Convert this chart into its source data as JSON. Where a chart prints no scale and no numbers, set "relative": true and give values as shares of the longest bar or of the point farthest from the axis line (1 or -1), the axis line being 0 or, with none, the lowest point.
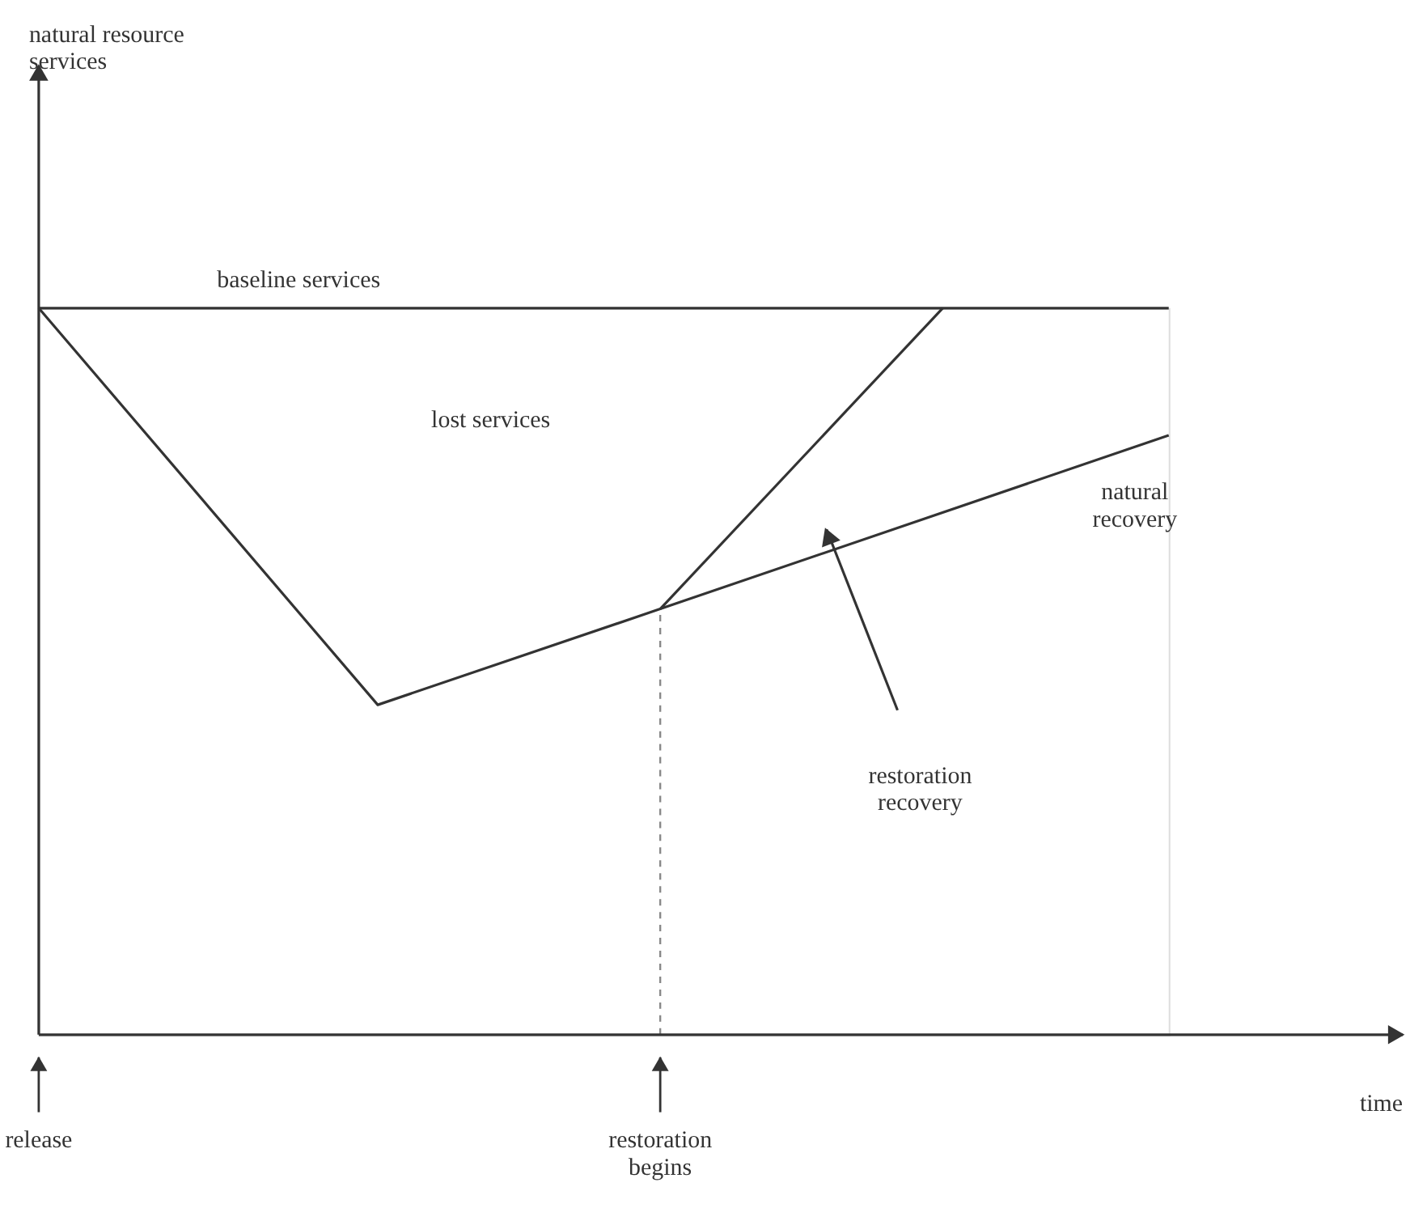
{
  "chart_data": {
    "type": "line",
    "relative": true,
    "tick_labels": false,
    "grid": false,
    "marker": "none",
    "categories": [
      null,
      null,
      null,
      null,
      null,
      null,
      null,
      null,
      null,
      null,
      null,
      null,
      null,
      null,
      null,
      null,
      null,
      null,
      null,
      null,
      null
    ],
    "series": [
      {
        "values": [
          1,
          null,
          null,
          null,
          null,
          null,
          null,
          null,
          null,
          null,
          null,
          null,
          null,
          null,
          null,
          null,
          null,
          null,
          null,
          null,
          1
        ],
        "color": "#333333",
        "line_style": "solid"
      },
      {
        "values": [
          1,
          null,
          null,
          null,
          null,
          null,
          0.454,
          null,
          null,
          null,
          null,
          0.586,
          null,
          null,
          null,
          null,
          null,
          null,
          null,
          null,
          0.825
        ],
        "color": "#333333",
        "line_style": "solid"
      },
      {
        "values": [
          null,
          null,
          null,
          null,
          null,
          null,
          null,
          null,
          null,
          null,
          null,
          0.586,
          null,
          null,
          null,
          null,
          1,
          null,
          null,
          null,
          null
        ],
        "color": "#333333",
        "line_style": "solid"
      }
    ],
    "annotations": [
      "baseline services",
      "lost services",
      "natural\nrecovery",
      "restoration\nrecovery",
      "release",
      "restoration\nbegins",
      "natural resource\nservices",
      "time"
    ]
  }
}
